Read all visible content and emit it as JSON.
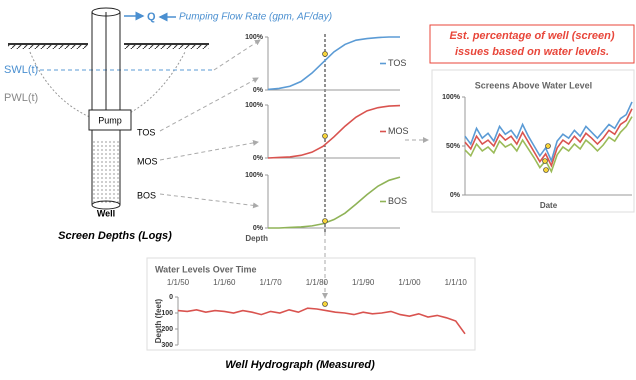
{
  "well": {
    "flow_symbol": "Q",
    "flow_label": "Pumping Flow Rate (gpm, AF/day)",
    "swl": "SWL(t)",
    "pwl": "PWL(t)",
    "pump": "Pump",
    "screens": [
      "TOS",
      "MOS",
      "BOS"
    ],
    "name": "Well",
    "caption": "Screen Depths (Logs)"
  },
  "callout": {
    "line1": "Est. percentage of well (screen)",
    "line2": "issues based on water levels."
  },
  "chart_data": [
    {
      "type": "line",
      "series": [
        {
          "name": "TOS",
          "color": "#5b9bd5",
          "values": [
            1,
            3,
            7,
            16,
            32,
            52,
            72,
            86,
            94,
            97,
            99,
            100,
            100
          ]
        }
      ],
      "ylim": [
        0,
        100
      ],
      "yticks": [
        {
          "value": 0,
          "label": "0%"
        },
        {
          "value": 100,
          "label": "100%"
        }
      ]
    },
    {
      "type": "line",
      "series": [
        {
          "name": "MOS",
          "color": "#d9534f",
          "values": [
            0,
            1,
            2,
            5,
            11,
            22,
            40,
            60,
            77,
            89,
            95,
            98,
            99
          ]
        }
      ],
      "ylim": [
        0,
        100
      ],
      "yticks": [
        {
          "value": 0,
          "label": "0%"
        },
        {
          "value": 100,
          "label": "100%"
        }
      ]
    },
    {
      "type": "line",
      "x_label": "Depth",
      "series": [
        {
          "name": "BOS",
          "color": "#8fb357",
          "values": [
            0,
            0,
            1,
            2,
            4,
            8,
            16,
            28,
            45,
            63,
            79,
            90,
            96
          ]
        }
      ],
      "ylim": [
        0,
        100
      ],
      "yticks": [
        {
          "value": 0,
          "label": "0%"
        },
        {
          "value": 100,
          "label": "100%"
        }
      ]
    },
    {
      "type": "line",
      "title": "Screens Above Water Level",
      "x_label": "Date",
      "ylim": [
        0,
        100
      ],
      "yticks": [
        {
          "value": 0,
          "label": "0%"
        },
        {
          "value": 50,
          "label": "50%"
        },
        {
          "value": 100,
          "label": "100%"
        }
      ],
      "series": [
        {
          "color": "#5b9bd5",
          "values": [
            60,
            52,
            68,
            58,
            63,
            55,
            70,
            62,
            66,
            58,
            72,
            60,
            50,
            40,
            48,
            35,
            55,
            62,
            58,
            66,
            60,
            70,
            64,
            58,
            65,
            72,
            68,
            78,
            82,
            95
          ]
        },
        {
          "color": "#d9534f",
          "values": [
            54,
            47,
            60,
            52,
            56,
            50,
            62,
            56,
            60,
            52,
            64,
            54,
            44,
            34,
            42,
            30,
            48,
            56,
            52,
            60,
            54,
            63,
            58,
            52,
            58,
            66,
            62,
            72,
            76,
            88
          ]
        },
        {
          "color": "#9bbb59",
          "values": [
            46,
            40,
            52,
            45,
            49,
            43,
            55,
            49,
            52,
            45,
            56,
            47,
            38,
            28,
            35,
            24,
            41,
            49,
            45,
            52,
            47,
            56,
            51,
            45,
            51,
            59,
            55,
            64,
            70,
            80
          ]
        }
      ]
    },
    {
      "type": "line",
      "title": "Water Levels Over Time",
      "y_label": "Depth (feet)",
      "color": "#d9534f",
      "y_inverted": true,
      "categories": [
        "1/1/50",
        null,
        null,
        null,
        null,
        "1/1/60",
        null,
        null,
        null,
        null,
        "1/1/70",
        null,
        null,
        null,
        null,
        "1/1/80",
        null,
        null,
        null,
        null,
        "1/1/90",
        null,
        null,
        null,
        null,
        "1/1/00",
        null,
        null,
        null,
        null,
        "1/1/10",
        null
      ],
      "values": [
        85,
        90,
        80,
        95,
        85,
        90,
        100,
        85,
        95,
        110,
        90,
        100,
        80,
        95,
        70,
        75,
        85,
        95,
        100,
        110,
        95,
        105,
        100,
        90,
        110,
        120,
        105,
        125,
        115,
        130,
        150,
        230
      ],
      "ylim": [
        0,
        300
      ],
      "yticks": [
        0,
        100,
        200,
        300
      ]
    }
  ],
  "hydrograph_caption": "Well Hydrograph (Measured)"
}
